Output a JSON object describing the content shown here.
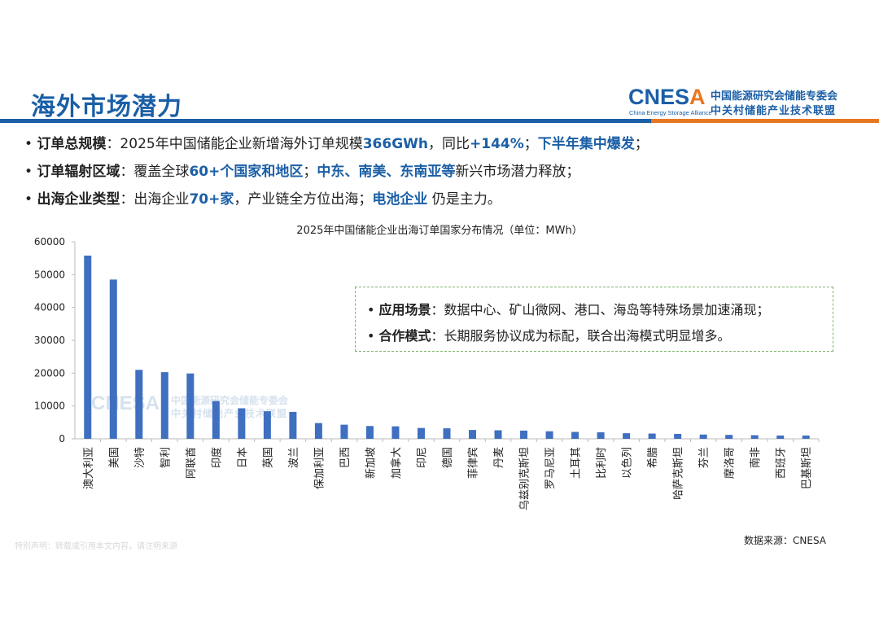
{
  "header": {
    "title": "海外市场潜力",
    "logo_word_main": "CNES",
    "logo_word_accent": "A",
    "logo_sub": "China Energy Storage Alliance",
    "logo_cn_line1": "中国能源研究会储能专委会",
    "logo_cn_line2": "中关村储能产业技术联盟"
  },
  "bullets": [
    {
      "label": "订单总规模",
      "parts": [
        {
          "text": "：2025年中国储能企业新增海外订单规模",
          "style": "plain"
        },
        {
          "text": "366GWh",
          "style": "blue"
        },
        {
          "text": "，同比",
          "style": "plain"
        },
        {
          "text": "+144%",
          "style": "blue"
        },
        {
          "text": "；",
          "style": "plain"
        },
        {
          "text": "下半年集中爆发",
          "style": "blue"
        },
        {
          "text": "；",
          "style": "plain"
        }
      ]
    },
    {
      "label": "订单辐射区域",
      "parts": [
        {
          "text": "：覆盖全球",
          "style": "plain"
        },
        {
          "text": "60+个国家和地区",
          "style": "blue"
        },
        {
          "text": "；",
          "style": "plain"
        },
        {
          "text": "中东、南美、东南亚等",
          "style": "blue"
        },
        {
          "text": "新兴市场潜力释放；",
          "style": "plain"
        }
      ]
    },
    {
      "label": "出海企业类型",
      "parts": [
        {
          "text": "：出海企业",
          "style": "plain"
        },
        {
          "text": "70+家",
          "style": "blue"
        },
        {
          "text": "，产业链全方位出海；",
          "style": "plain"
        },
        {
          "text": "电池企业",
          "style": "blue"
        },
        {
          "text": " 仍是主力。",
          "style": "plain"
        }
      ]
    }
  ],
  "callout": {
    "items": [
      {
        "label": "应用场景",
        "text": "：数据中心、矿山微网、港口、海岛等特殊场景加速涌现；"
      },
      {
        "label": "合作模式",
        "text": "：长期服务协议成为标配，联合出海模式明显增多。"
      }
    ]
  },
  "watermark": {
    "word": "CNESA",
    "cn_line1": "中国能源研究会储能专委会",
    "cn_line2": "中关村储能产业技术联盟"
  },
  "source": "数据来源：CNESA",
  "disclaimer": "特别声明：转载或引用本文内容，请注明来源",
  "colors": {
    "brand_blue": "#1b5fa6",
    "accent_orange": "#e87722",
    "bar_blue": "#3f6fc0",
    "callout_border": "#7fb26d"
  },
  "chart_data": {
    "type": "bar",
    "title": "2025年中国储能企业出海订单国家分布情况（单位：MWh）",
    "xlabel": "",
    "ylabel": "",
    "ylim": [
      0,
      60000
    ],
    "yticks": [
      0,
      10000,
      20000,
      30000,
      40000,
      50000,
      60000
    ],
    "grid": false,
    "categories": [
      "澳大利亚",
      "美国",
      "沙特",
      "智利",
      "阿联酋",
      "印度",
      "日本",
      "英国",
      "波兰",
      "保加利亚",
      "巴西",
      "新加坡",
      "加拿大",
      "印尼",
      "德国",
      "菲律宾",
      "丹麦",
      "乌兹别克斯坦",
      "罗马尼亚",
      "土耳其",
      "比利时",
      "以色列",
      "希腊",
      "哈萨克斯坦",
      "芬兰",
      "摩洛哥",
      "南非",
      "西班牙",
      "巴基斯坦"
    ],
    "values": [
      55800,
      48500,
      21000,
      20300,
      19900,
      11500,
      9300,
      8400,
      8200,
      4800,
      4300,
      3900,
      3800,
      3300,
      3200,
      2700,
      2600,
      2500,
      2300,
      2100,
      2000,
      1700,
      1600,
      1500,
      1300,
      1200,
      1100,
      1000,
      1000
    ]
  }
}
